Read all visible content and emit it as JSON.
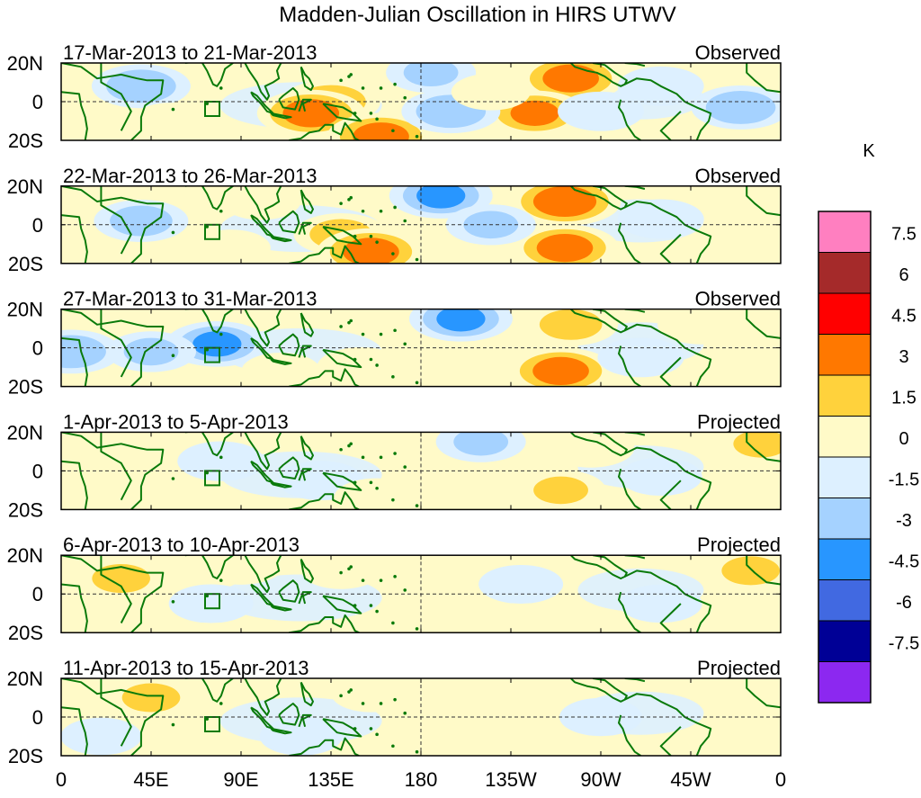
{
  "chart_data": {
    "type": "heatmap",
    "title": "Madden-Julian Oscillation in HIRS UTWV",
    "variable": "HIRS UTWV",
    "units": "K",
    "grid": true,
    "x_ticks": [
      "0",
      "45E",
      "90E",
      "135E",
      "180",
      "135W",
      "90W",
      "45W",
      "0"
    ],
    "y_ticks": [
      "20N",
      "0",
      "20S"
    ],
    "xlim": [
      0,
      360
    ],
    "ylim": [
      -20,
      20
    ],
    "colorbar": {
      "levels": [
        "7.5",
        "6",
        "4.5",
        "3",
        "1.5",
        "0",
        "-1.5",
        "-3",
        "-4.5",
        "-6",
        "-7.5"
      ],
      "colors": [
        "#ff7fc0",
        "#a52a2a",
        "#ff0000",
        "#ff7800",
        "#ffd23c",
        "#fffac8",
        "#ddf0ff",
        "#a5d2ff",
        "#2896ff",
        "#4169e1",
        "#000096",
        "#8c28f0"
      ]
    },
    "panels": [
      {
        "period": "17-Mar-2013 to 21-Mar-2013",
        "status": "Observed",
        "anomalies": [
          {
            "lon": 135,
            "lat": 0,
            "v": 3
          },
          {
            "lon": 125,
            "lat": -6,
            "v": 4
          },
          {
            "lon": 160,
            "lat": -18,
            "v": 4
          },
          {
            "lon": 255,
            "lat": 12,
            "v": 4
          },
          {
            "lon": 237,
            "lat": -6,
            "v": 3.5
          },
          {
            "lon": 40,
            "lat": 8,
            "v": -3
          },
          {
            "lon": 185,
            "lat": 15,
            "v": -2
          },
          {
            "lon": 195,
            "lat": -5,
            "v": -3
          },
          {
            "lon": 340,
            "lat": -3,
            "v": -3
          },
          {
            "lon": 270,
            "lat": -5,
            "v": -1.6
          },
          {
            "lon": 300,
            "lat": 8,
            "v": -1.6
          },
          {
            "lon": 55,
            "lat": -10,
            "v": 0.8
          },
          {
            "lon": 215,
            "lat": 5,
            "v": 0.8
          }
        ]
      },
      {
        "period": "22-Mar-2013 to 26-Mar-2013",
        "status": "Observed",
        "anomalies": [
          {
            "lon": 140,
            "lat": -5,
            "v": 2.5
          },
          {
            "lon": 155,
            "lat": -14,
            "v": 4
          },
          {
            "lon": 252,
            "lat": 12,
            "v": 4.5
          },
          {
            "lon": 252,
            "lat": -12,
            "v": 4
          },
          {
            "lon": 40,
            "lat": 2,
            "v": -2.5
          },
          {
            "lon": 190,
            "lat": 15,
            "v": -3.5
          },
          {
            "lon": 215,
            "lat": 0,
            "v": -2
          },
          {
            "lon": 300,
            "lat": 3,
            "v": -1.6
          },
          {
            "lon": 100,
            "lat": 12,
            "v": 0.8
          },
          {
            "lon": 85,
            "lat": -12,
            "v": 0.8
          }
        ]
      },
      {
        "period": "27-Mar-2013 to 31-Mar-2013",
        "status": "Observed",
        "anomalies": [
          {
            "lon": 78,
            "lat": 2,
            "v": -3.5
          },
          {
            "lon": 45,
            "lat": -2,
            "v": -2
          },
          {
            "lon": 5,
            "lat": -2,
            "v": -3
          },
          {
            "lon": 200,
            "lat": 15,
            "v": -3.5
          },
          {
            "lon": 255,
            "lat": 12,
            "v": 2.5
          },
          {
            "lon": 250,
            "lat": -12,
            "v": 4
          },
          {
            "lon": 150,
            "lat": -10,
            "v": 1.8
          },
          {
            "lon": 320,
            "lat": 12,
            "v": 1.6
          },
          {
            "lon": 110,
            "lat": -12,
            "v": 0.8
          },
          {
            "lon": 290,
            "lat": -5,
            "v": -1.6
          }
        ]
      },
      {
        "period": "1-Apr-2013 to 5-Apr-2013",
        "status": "Projected",
        "anomalies": [
          {
            "lon": 80,
            "lat": 5,
            "v": -1.7
          },
          {
            "lon": 130,
            "lat": -5,
            "v": -1.6
          },
          {
            "lon": 210,
            "lat": 15,
            "v": -2
          },
          {
            "lon": 250,
            "lat": -10,
            "v": 2
          },
          {
            "lon": 265,
            "lat": 12,
            "v": 1.7
          },
          {
            "lon": 350,
            "lat": 14,
            "v": 2
          },
          {
            "lon": 30,
            "lat": 12,
            "v": 1.6
          },
          {
            "lon": 158,
            "lat": -14,
            "v": 1.6
          },
          {
            "lon": 340,
            "lat": -15,
            "v": 1.6
          },
          {
            "lon": 300,
            "lat": -3,
            "v": -1.2
          }
        ]
      },
      {
        "period": "6-Apr-2013 to 10-Apr-2013",
        "status": "Projected",
        "anomalies": [
          {
            "lon": 30,
            "lat": 8,
            "v": 2.2
          },
          {
            "lon": 90,
            "lat": 15,
            "v": 1.6
          },
          {
            "lon": 140,
            "lat": 12,
            "v": 0.8
          },
          {
            "lon": 180,
            "lat": 14,
            "v": 1.6
          },
          {
            "lon": 250,
            "lat": -12,
            "v": 1.6
          },
          {
            "lon": 345,
            "lat": 12,
            "v": 2.2
          },
          {
            "lon": 75,
            "lat": -5,
            "v": -1.4
          },
          {
            "lon": 230,
            "lat": 5,
            "v": -1.4
          },
          {
            "lon": 300,
            "lat": -5,
            "v": -1.2
          },
          {
            "lon": 20,
            "lat": -10,
            "v": 0.8
          }
        ]
      },
      {
        "period": "11-Apr-2013 to 15-Apr-2013",
        "status": "Projected",
        "anomalies": [
          {
            "lon": 45,
            "lat": 10,
            "v": 2.2
          },
          {
            "lon": 350,
            "lat": 12,
            "v": 1.6
          },
          {
            "lon": 155,
            "lat": 12,
            "v": 0.8
          },
          {
            "lon": 200,
            "lat": 12,
            "v": 1
          },
          {
            "lon": 235,
            "lat": 5,
            "v": 0.7
          },
          {
            "lon": 270,
            "lat": 0,
            "v": -1.2
          },
          {
            "lon": 120,
            "lat": -10,
            "v": -1.2
          },
          {
            "lon": 20,
            "lat": -10,
            "v": -1
          },
          {
            "lon": 330,
            "lat": -15,
            "v": 0.8
          }
        ]
      }
    ]
  }
}
